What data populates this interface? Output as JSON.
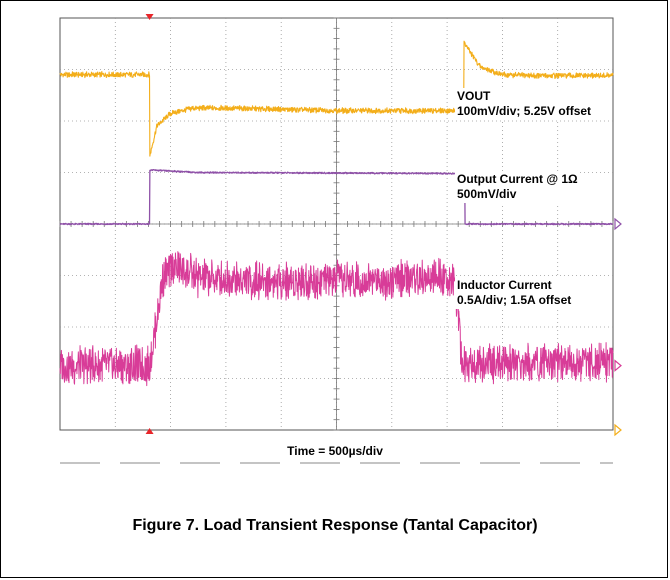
{
  "chart_data": {
    "type": "line",
    "title": "",
    "xlabel": "Time = 500µs/div",
    "ylabel": "",
    "x_divisions": 10,
    "y_divisions": 8,
    "grid": true,
    "colors": {
      "vout": "#f3ae1a",
      "iout": "#8f52a8",
      "inductor": "#d83c98",
      "grid": "#9a9a9a",
      "trigger": "#e8252a"
    },
    "series": [
      {
        "key": "vout",
        "label_line1": "VOUT",
        "label_line2": "100mV/div; 5.25V offset",
        "x": [
          0,
          1.62,
          1.62,
          1.75,
          2.0,
          2.4,
          3.0,
          5.0,
          7.3,
          7.3,
          7.38,
          7.6,
          8.0,
          8.6,
          10.0
        ],
        "y": [
          6.9,
          6.9,
          5.3,
          5.9,
          6.15,
          6.25,
          6.25,
          6.2,
          6.2,
          7.55,
          7.4,
          7.05,
          6.9,
          6.88,
          6.88
        ]
      },
      {
        "key": "iout",
        "label_line1": "Output Current @ 1Ω",
        "label_line2": "500mV/div",
        "x": [
          0,
          1.62,
          1.62,
          2.5,
          7.32,
          7.32,
          10.0
        ],
        "y": [
          4.0,
          4.0,
          5.05,
          5.0,
          4.98,
          4.0,
          4.0
        ]
      },
      {
        "key": "inductor",
        "label_line1": "Inductor Current",
        "label_line2": "0.5A/div; 1.5A offset",
        "x": [
          0,
          1.62,
          1.7,
          1.85,
          2.05,
          2.5,
          3.5,
          5.0,
          7.1,
          7.2,
          7.26,
          7.42,
          10.0
        ],
        "y": [
          1.25,
          1.25,
          1.8,
          2.9,
          3.2,
          2.95,
          2.9,
          2.9,
          2.95,
          2.3,
          1.35,
          1.3,
          1.3
        ]
      }
    ]
  },
  "figure": {
    "caption": "Figure 7. Load Transient Response (Tantal Capacitor)"
  }
}
